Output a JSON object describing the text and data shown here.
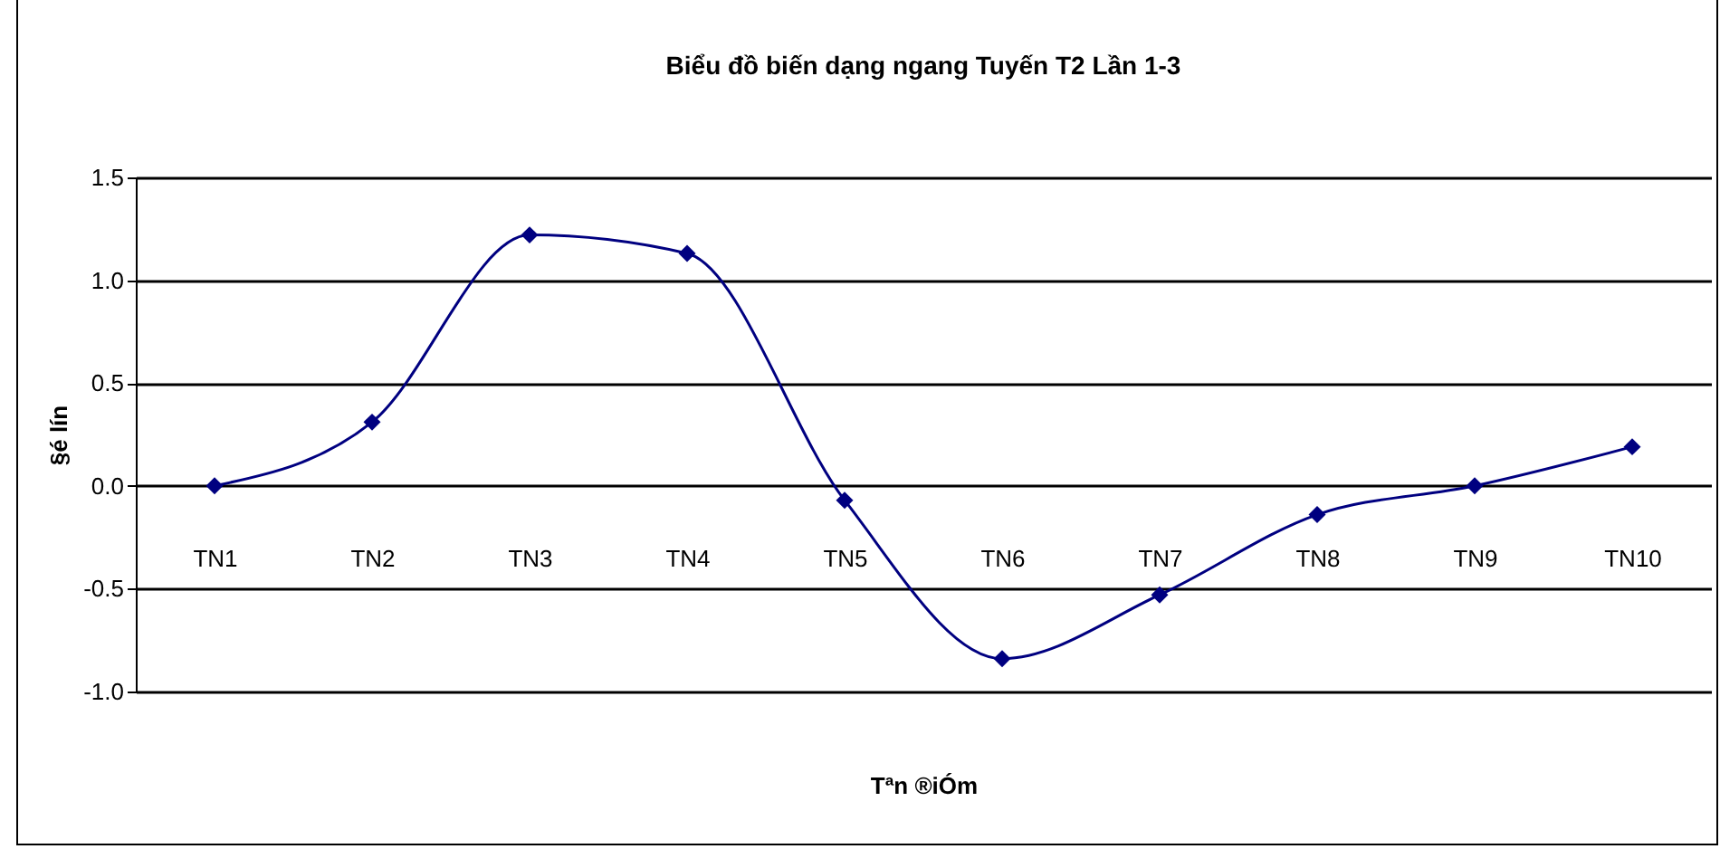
{
  "chart_data": {
    "type": "line",
    "title": "Biểu đồ biến dạng ngang Tuyến T2    Lần 1-3",
    "xlabel": "Tªn ®iÓm",
    "ylabel": "§é lín",
    "categories": [
      "TN1",
      "TN2",
      "TN3",
      "TN4",
      "TN5",
      "TN6",
      "TN7",
      "TN8",
      "TN9",
      "TN10"
    ],
    "series": [
      {
        "color": "#000080",
        "values": [
          0,
          0.31,
          1.22,
          1.13,
          -0.07,
          -0.84,
          -0.53,
          -0.14,
          0,
          0.19
        ]
      }
    ],
    "ylim": [
      -1.0,
      1.5
    ],
    "yticks": [
      {
        "value": -1.0,
        "label": "-1.0"
      },
      {
        "value": -0.5,
        "label": "-0.5"
      },
      {
        "value": 0,
        "label": "0.0"
      },
      {
        "value": 0.5,
        "label": "0.5"
      },
      {
        "value": 1.0,
        "label": "1.0"
      },
      {
        "value": 1.5,
        "label": "1.5"
      }
    ],
    "grid": "y",
    "marker": "diamond",
    "legend": false
  }
}
